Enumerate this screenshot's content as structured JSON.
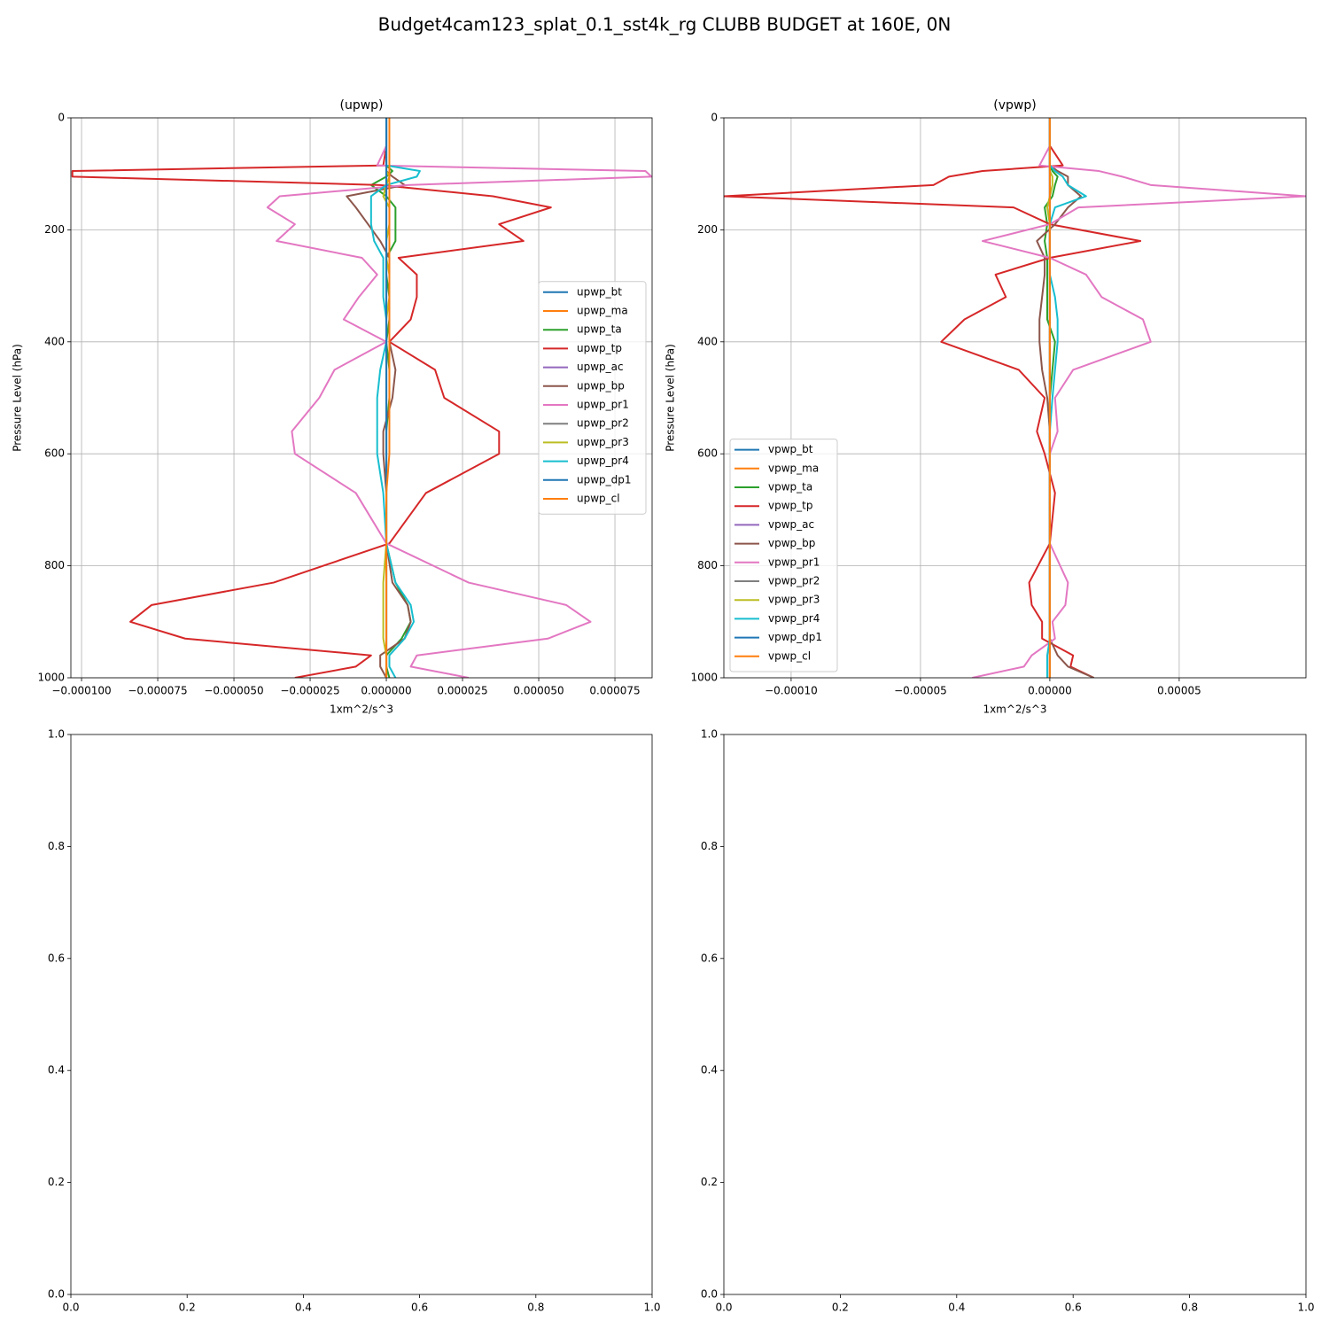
{
  "title": "Budget4cam123_splat_0.1_sst4k_rg CLUBB BUDGET at 160E, 0N",
  "chart_data": [
    {
      "type": "line",
      "title": "(upwp)",
      "xlabel": "1xm^2/s^3",
      "ylabel": "Pressure Level (hPa)",
      "grid": true,
      "legend": "center right",
      "y": [
        0,
        50,
        85,
        95,
        105,
        120,
        140,
        160,
        190,
        220,
        250,
        280,
        320,
        360,
        400,
        450,
        500,
        560,
        600,
        670,
        760,
        830,
        870,
        900,
        930,
        960,
        980,
        1000
      ],
      "xlim": [
        -0.0001035,
        8.72e-05
      ],
      "ylim": [
        1000,
        0
      ],
      "xticks": [
        {
          "value": -0.0001,
          "label": "−0.000100"
        },
        {
          "value": -7.5e-05,
          "label": "−0.000075"
        },
        {
          "value": -5e-05,
          "label": "−0.000050"
        },
        {
          "value": -2.5e-05,
          "label": "−0.000025"
        },
        {
          "value": 0,
          "label": "0.000000"
        },
        {
          "value": 2.5e-05,
          "label": "0.000025"
        },
        {
          "value": 5e-05,
          "label": "0.000050"
        },
        {
          "value": 7.5e-05,
          "label": "0.000075"
        }
      ],
      "yticks": [
        0,
        200,
        400,
        600,
        800,
        1000
      ],
      "series": [
        {
          "name": "upwp_bt",
          "color": "#1f77b4",
          "values": [
            0,
            0,
            0,
            0,
            0,
            0,
            0,
            0,
            0,
            0,
            0,
            0,
            0,
            0,
            0,
            0,
            0,
            0,
            0,
            0,
            0,
            0,
            0,
            0,
            0,
            0,
            0,
            0
          ]
        },
        {
          "name": "upwp_ma",
          "color": "#ff7f0e",
          "values": [
            0,
            0,
            0,
            0,
            0,
            0,
            0,
            0,
            0,
            0,
            0,
            0,
            0,
            0,
            0,
            0,
            0,
            0,
            0,
            0,
            0,
            0,
            0,
            0,
            0,
            0,
            0,
            0
          ]
        },
        {
          "name": "upwp_ta",
          "color": "#2ca02c",
          "values": [
            0,
            0,
            0,
            2e-06,
            0,
            -5e-06,
            0,
            3e-06,
            3e-06,
            3e-06,
            0,
            0,
            1e-06,
            1e-06,
            0,
            1e-06,
            1e-06,
            0,
            0,
            0,
            0,
            3e-06,
            7e-06,
            8e-06,
            5e-06,
            0,
            0,
            1e-06
          ]
        },
        {
          "name": "upwp_tp",
          "color": "#d62728",
          "values": [
            0,
            0,
            -1e-06,
            -0.000103,
            -0.000103,
            -2e-06,
            3.5e-05,
            5.4e-05,
            3.7e-05,
            4.5e-05,
            4e-06,
            1e-05,
            1e-05,
            8e-06,
            1e-06,
            1.6e-05,
            1.9e-05,
            3.7e-05,
            3.7e-05,
            1.3e-05,
            1e-06,
            -3.7e-05,
            -7.7e-05,
            -8.4e-05,
            -6.6e-05,
            -5e-06,
            -1e-05,
            -3e-05
          ]
        },
        {
          "name": "upwp_ac",
          "color": "#9467bd",
          "values": [
            0,
            0,
            0,
            0,
            0,
            0,
            0,
            0,
            0,
            0,
            0,
            0,
            0,
            0,
            0,
            0,
            0,
            0,
            0,
            0,
            0,
            0,
            0,
            0,
            0,
            0,
            0,
            0
          ]
        },
        {
          "name": "upwp_bp",
          "color": "#8c564b",
          "values": [
            0,
            0,
            0,
            0,
            2e-06,
            6e-06,
            -1.3e-05,
            -1e-05,
            -6e-06,
            -2e-06,
            1e-06,
            1e-06,
            1e-06,
            1e-06,
            1e-06,
            3e-06,
            2e-06,
            -1e-06,
            -1e-06,
            0,
            0,
            2e-06,
            7e-06,
            8e-06,
            6e-06,
            -2e-06,
            -2e-06,
            0
          ]
        },
        {
          "name": "upwp_pr1",
          "color": "#e377c2",
          "values": [
            0,
            0,
            -3e-06,
            8.5e-05,
            8.7e-05,
            7e-06,
            -3.5e-05,
            -3.9e-05,
            -3e-05,
            -3.6e-05,
            -8e-06,
            -3e-06,
            -9e-06,
            -1.4e-05,
            0,
            -1.7e-05,
            -2.2e-05,
            -3.1e-05,
            -3e-05,
            -1e-05,
            0,
            2.7e-05,
            5.9e-05,
            6.7e-05,
            5.3e-05,
            1e-05,
            8e-06,
            2.7e-05
          ]
        },
        {
          "name": "upwp_pr2",
          "color": "#7f7f7f",
          "values": [
            0,
            0,
            0,
            0,
            0,
            0,
            0,
            0,
            0,
            0,
            0,
            0,
            0,
            0,
            0,
            0,
            0,
            0,
            0,
            0,
            0,
            0,
            0,
            0,
            0,
            0,
            0,
            0
          ]
        },
        {
          "name": "upwp_pr3",
          "color": "#bcbd22",
          "values": [
            0,
            0,
            0,
            0,
            1e-06,
            0,
            -1e-06,
            1e-06,
            1e-06,
            0,
            0,
            1e-06,
            1e-06,
            0,
            0,
            0,
            0,
            0,
            0,
            0,
            0,
            -1e-06,
            -1e-06,
            -1e-06,
            -1e-06,
            0,
            0,
            0
          ]
        },
        {
          "name": "upwp_pr4",
          "color": "#17becf",
          "values": [
            0,
            0,
            0,
            1.1e-05,
            1e-05,
            0,
            -5e-06,
            -5e-06,
            -5e-06,
            -4e-06,
            -1e-06,
            -1e-06,
            -1e-06,
            0,
            0,
            -2e-06,
            -3e-06,
            -3e-06,
            -3e-06,
            -1e-06,
            0,
            3e-06,
            8e-06,
            9e-06,
            6e-06,
            1e-06,
            1e-06,
            3e-06
          ]
        },
        {
          "name": "upwp_dp1",
          "color": "#1f77b4",
          "values": [
            0,
            0,
            0,
            0,
            0,
            0,
            0,
            0,
            0,
            0,
            0,
            0,
            0,
            0,
            0,
            0,
            0,
            0,
            0,
            0,
            0,
            0,
            0,
            0,
            0,
            0,
            0,
            0
          ]
        },
        {
          "name": "upwp_cl",
          "color": "#ff7f0e",
          "values": [
            1e-06,
            1e-06,
            1e-06,
            1e-06,
            1e-06,
            1e-06,
            1e-06,
            1e-06,
            1e-06,
            1e-06,
            1e-06,
            1e-06,
            1e-06,
            1e-06,
            1e-06,
            1e-06,
            1e-06,
            1e-06,
            1e-06,
            0,
            0,
            0,
            0,
            0,
            0,
            0,
            0,
            0
          ]
        }
      ]
    },
    {
      "type": "line",
      "title": "(vpwp)",
      "xlabel": "1xm^2/s^3",
      "ylabel": "Pressure Level (hPa)",
      "grid": true,
      "legend": "lower left",
      "y": [
        0,
        50,
        85,
        95,
        105,
        120,
        140,
        160,
        190,
        220,
        250,
        280,
        320,
        360,
        400,
        450,
        500,
        560,
        600,
        670,
        760,
        830,
        870,
        900,
        930,
        960,
        980,
        1000
      ],
      "xlim": [
        -0.000126,
        9.9e-05
      ],
      "ylim": [
        1000,
        0
      ],
      "xticks": [
        {
          "value": -0.0001,
          "label": "−0.00010"
        },
        {
          "value": -5e-05,
          "label": "−0.00005"
        },
        {
          "value": 0,
          "label": "0.00000"
        },
        {
          "value": 5e-05,
          "label": "0.00005"
        }
      ],
      "yticks": [
        0,
        200,
        400,
        600,
        800,
        1000
      ],
      "series": [
        {
          "name": "vpwp_bt",
          "color": "#1f77b4",
          "values": [
            0,
            0,
            0,
            0,
            0,
            0,
            0,
            0,
            0,
            0,
            0,
            0,
            0,
            0,
            0,
            0,
            0,
            0,
            0,
            0,
            0,
            0,
            0,
            0,
            0,
            0,
            0,
            0
          ]
        },
        {
          "name": "vpwp_ma",
          "color": "#ff7f0e",
          "values": [
            0,
            0,
            0,
            0,
            0,
            0,
            0,
            0,
            0,
            0,
            0,
            0,
            0,
            0,
            0,
            0,
            0,
            0,
            0,
            0,
            0,
            0,
            0,
            0,
            0,
            0,
            0,
            0
          ]
        },
        {
          "name": "vpwp_ta",
          "color": "#2ca02c",
          "values": [
            0,
            0,
            0,
            1e-06,
            3e-06,
            2e-06,
            1e-06,
            -2e-06,
            -1e-06,
            -2e-06,
            -1e-06,
            -1e-06,
            -1e-06,
            -1e-06,
            2e-06,
            1e-06,
            0,
            0,
            0,
            0,
            0,
            0,
            0,
            0,
            0,
            0,
            0,
            0
          ]
        },
        {
          "name": "vpwp_tp",
          "color": "#d62728",
          "values": [
            0,
            0,
            5e-06,
            -2.6e-05,
            -3.9e-05,
            -4.5e-05,
            -0.000126,
            -1.4e-05,
            0,
            3.5e-05,
            0,
            -2.1e-05,
            -1.7e-05,
            -3.3e-05,
            -4.2e-05,
            -1.2e-05,
            -2e-06,
            -5e-06,
            -2e-06,
            2e-06,
            0,
            -8e-06,
            -7e-06,
            -3e-06,
            -3e-06,
            9e-06,
            8e-06,
            1.7e-05
          ]
        },
        {
          "name": "vpwp_ac",
          "color": "#9467bd",
          "values": [
            0,
            0,
            0,
            0,
            0,
            0,
            0,
            0,
            0,
            0,
            0,
            0,
            0,
            0,
            0,
            0,
            0,
            0,
            0,
            0,
            0,
            0,
            0,
            0,
            0,
            0,
            0,
            0
          ]
        },
        {
          "name": "vpwp_bp",
          "color": "#8c564b",
          "values": [
            0,
            0,
            0,
            3e-06,
            7e-06,
            7e-06,
            1.2e-05,
            7e-06,
            2e-06,
            -5e-06,
            -2e-06,
            -2e-06,
            -3e-06,
            -4e-06,
            -4e-06,
            -3e-06,
            -1e-06,
            0,
            0,
            0,
            0,
            0,
            0,
            0,
            0,
            3e-06,
            7e-06,
            1.7e-05
          ]
        },
        {
          "name": "vpwp_pr1",
          "color": "#e377c2",
          "values": [
            0,
            0,
            -4e-06,
            1.9e-05,
            2.8e-05,
            3.9e-05,
            9.9e-05,
            1.1e-05,
            0,
            -2.6e-05,
            0,
            1.4e-05,
            2e-05,
            3.6e-05,
            3.9e-05,
            9e-06,
            2e-06,
            3e-06,
            0,
            0,
            0,
            7e-06,
            6e-06,
            1e-06,
            2e-06,
            -7e-06,
            -1e-05,
            -3e-05
          ]
        },
        {
          "name": "vpwp_pr2",
          "color": "#7f7f7f",
          "values": [
            0,
            0,
            0,
            0,
            0,
            0,
            0,
            0,
            0,
            0,
            0,
            0,
            0,
            0,
            0,
            0,
            0,
            0,
            0,
            0,
            0,
            0,
            0,
            0,
            0,
            0,
            0,
            0
          ]
        },
        {
          "name": "vpwp_pr3",
          "color": "#bcbd22",
          "values": [
            0,
            0,
            0,
            0,
            1e-06,
            1e-06,
            0,
            -1e-06,
            0,
            0,
            0,
            0,
            0,
            0,
            0,
            0,
            0,
            0,
            0,
            0,
            0,
            0,
            0,
            0,
            0,
            0,
            0,
            0
          ]
        },
        {
          "name": "vpwp_pr4",
          "color": "#17becf",
          "values": [
            0,
            0,
            0,
            2e-06,
            5e-06,
            7e-06,
            1.4e-05,
            2e-06,
            0,
            0,
            0,
            0,
            2e-06,
            3e-06,
            3e-06,
            2e-06,
            1e-06,
            0,
            0,
            0,
            0,
            0,
            0,
            0,
            0,
            -1e-06,
            -1e-06,
            -1e-06
          ]
        },
        {
          "name": "vpwp_dp1",
          "color": "#1f77b4",
          "values": [
            0,
            0,
            0,
            0,
            0,
            0,
            0,
            0,
            0,
            0,
            0,
            0,
            0,
            0,
            0,
            0,
            0,
            0,
            0,
            0,
            0,
            0,
            0,
            0,
            0,
            0,
            0,
            0
          ]
        },
        {
          "name": "vpwp_cl",
          "color": "#ff7f0e",
          "values": [
            0,
            0,
            0,
            0,
            0,
            0,
            0,
            0,
            0,
            0,
            0,
            0,
            0,
            0,
            0,
            0,
            0,
            0,
            0,
            0,
            0,
            0,
            0,
            0,
            0,
            0,
            0,
            0
          ]
        }
      ]
    },
    {
      "type": "line",
      "grid": false,
      "xlim": [
        0,
        1
      ],
      "ylim": [
        0,
        1
      ],
      "xticks": [
        {
          "value": 0,
          "label": "0.0"
        },
        {
          "value": 0.2,
          "label": "0.2"
        },
        {
          "value": 0.4,
          "label": "0.4"
        },
        {
          "value": 0.6,
          "label": "0.6"
        },
        {
          "value": 0.8,
          "label": "0.8"
        },
        {
          "value": 1,
          "label": "1.0"
        }
      ],
      "yticks": [
        {
          "value": 0,
          "label": "0.0"
        },
        {
          "value": 0.2,
          "label": "0.2"
        },
        {
          "value": 0.4,
          "label": "0.4"
        },
        {
          "value": 0.6,
          "label": "0.6"
        },
        {
          "value": 0.8,
          "label": "0.8"
        },
        {
          "value": 1,
          "label": "1.0"
        }
      ]
    },
    {
      "type": "line",
      "grid": false,
      "xlim": [
        0,
        1
      ],
      "ylim": [
        0,
        1
      ],
      "xticks": [
        {
          "value": 0,
          "label": "0.0"
        },
        {
          "value": 0.2,
          "label": "0.2"
        },
        {
          "value": 0.4,
          "label": "0.4"
        },
        {
          "value": 0.6,
          "label": "0.6"
        },
        {
          "value": 0.8,
          "label": "0.8"
        },
        {
          "value": 1,
          "label": "1.0"
        }
      ],
      "yticks": [
        {
          "value": 0,
          "label": "0.0"
        },
        {
          "value": 0.2,
          "label": "0.2"
        },
        {
          "value": 0.4,
          "label": "0.4"
        },
        {
          "value": 0.6,
          "label": "0.6"
        },
        {
          "value": 0.8,
          "label": "0.8"
        },
        {
          "value": 1,
          "label": "1.0"
        }
      ]
    }
  ]
}
